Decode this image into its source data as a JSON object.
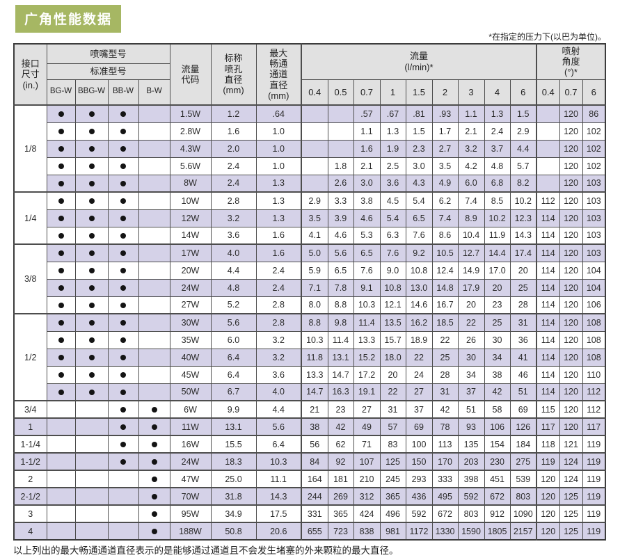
{
  "title": "广角性能数据",
  "note_top": "*在指定的压力下(以巴为单位)。",
  "footer": "以上列出的最大畅通通道直径表示的是能够通过通道且不会发生堵塞的外来颗粒的最大直径。",
  "colors": {
    "title_bg": "#a6b763",
    "row_stripe": "#d5d2e8",
    "header_bg": "#e1e1e1",
    "border": "#4d4d4d"
  },
  "table": {
    "header": {
      "size": "接口\n尺寸\n(in.)",
      "nozzle_model": "喷嘴型号",
      "standard_model": "标准型号",
      "models": [
        "BG-W",
        "BBG-W",
        "BB-W",
        "B-W"
      ],
      "flow_code": "流量\n代码",
      "orifice": "标称\n喷孔\n直径\n(mm)",
      "passage": "最大\n畅通\n通道\n直径\n(mm)",
      "flow": "流量\n(l/min)*",
      "flow_pressures": [
        "0.4",
        "0.5",
        "0.7",
        "1",
        "1.5",
        "2",
        "3",
        "4",
        "6"
      ],
      "angle": "喷射\n角度\n(°)*",
      "angle_pressures": [
        "0.4",
        "0.7",
        "6"
      ]
    },
    "groups": [
      {
        "size": "1/8",
        "rows": [
          {
            "models": [
              1,
              1,
              1,
              0
            ],
            "code": "1.5W",
            "orifice": "1.2",
            "passage": ".64",
            "flows": [
              "",
              "",
              ".57",
              ".67",
              ".81",
              ".93",
              "1.1",
              "1.3",
              "1.5"
            ],
            "angles": [
              "",
              "120",
              "86"
            ]
          },
          {
            "models": [
              1,
              1,
              1,
              0
            ],
            "code": "2.8W",
            "orifice": "1.6",
            "passage": "1.0",
            "flows": [
              "",
              "",
              "1.1",
              "1.3",
              "1.5",
              "1.7",
              "2.1",
              "2.4",
              "2.9"
            ],
            "angles": [
              "",
              "120",
              "102"
            ]
          },
          {
            "models": [
              1,
              1,
              1,
              0
            ],
            "code": "4.3W",
            "orifice": "2.0",
            "passage": "1.0",
            "flows": [
              "",
              "",
              "1.6",
              "1.9",
              "2.3",
              "2.7",
              "3.2",
              "3.7",
              "4.4"
            ],
            "angles": [
              "",
              "120",
              "102"
            ]
          },
          {
            "models": [
              1,
              1,
              1,
              0
            ],
            "code": "5.6W",
            "orifice": "2.4",
            "passage": "1.0",
            "flows": [
              "",
              "1.8",
              "2.1",
              "2.5",
              "3.0",
              "3.5",
              "4.2",
              "4.8",
              "5.7"
            ],
            "angles": [
              "",
              "120",
              "102"
            ]
          },
          {
            "models": [
              1,
              1,
              1,
              0
            ],
            "code": "8W",
            "orifice": "2.4",
            "passage": "1.3",
            "flows": [
              "",
              "2.6",
              "3.0",
              "3.6",
              "4.3",
              "4.9",
              "6.0",
              "6.8",
              "8.2"
            ],
            "angles": [
              "",
              "120",
              "103"
            ]
          }
        ]
      },
      {
        "size": "1/4",
        "rows": [
          {
            "models": [
              1,
              1,
              1,
              0
            ],
            "code": "10W",
            "orifice": "2.8",
            "passage": "1.3",
            "flows": [
              "2.9",
              "3.3",
              "3.8",
              "4.5",
              "5.4",
              "6.2",
              "7.4",
              "8.5",
              "10.2"
            ],
            "angles": [
              "112",
              "120",
              "103"
            ]
          },
          {
            "models": [
              1,
              1,
              1,
              0
            ],
            "code": "12W",
            "orifice": "3.2",
            "passage": "1.3",
            "flows": [
              "3.5",
              "3.9",
              "4.6",
              "5.4",
              "6.5",
              "7.4",
              "8.9",
              "10.2",
              "12.3"
            ],
            "angles": [
              "114",
              "120",
              "103"
            ]
          },
          {
            "models": [
              1,
              1,
              1,
              0
            ],
            "code": "14W",
            "orifice": "3.6",
            "passage": "1.6",
            "flows": [
              "4.1",
              "4.6",
              "5.3",
              "6.3",
              "7.6",
              "8.6",
              "10.4",
              "11.9",
              "14.3"
            ],
            "angles": [
              "114",
              "120",
              "103"
            ]
          }
        ]
      },
      {
        "size": "3/8",
        "rows": [
          {
            "models": [
              1,
              1,
              1,
              0
            ],
            "code": "17W",
            "orifice": "4.0",
            "passage": "1.6",
            "flows": [
              "5.0",
              "5.6",
              "6.5",
              "7.6",
              "9.2",
              "10.5",
              "12.7",
              "14.4",
              "17.4"
            ],
            "angles": [
              "114",
              "120",
              "103"
            ]
          },
          {
            "models": [
              1,
              1,
              1,
              0
            ],
            "code": "20W",
            "orifice": "4.4",
            "passage": "2.4",
            "flows": [
              "5.9",
              "6.5",
              "7.6",
              "9.0",
              "10.8",
              "12.4",
              "14.9",
              "17.0",
              "20"
            ],
            "angles": [
              "114",
              "120",
              "104"
            ]
          },
          {
            "models": [
              1,
              1,
              1,
              0
            ],
            "code": "24W",
            "orifice": "4.8",
            "passage": "2.4",
            "flows": [
              "7.1",
              "7.8",
              "9.1",
              "10.8",
              "13.0",
              "14.8",
              "17.9",
              "20",
              "25"
            ],
            "angles": [
              "114",
              "120",
              "104"
            ]
          },
          {
            "models": [
              1,
              1,
              1,
              0
            ],
            "code": "27W",
            "orifice": "5.2",
            "passage": "2.8",
            "flows": [
              "8.0",
              "8.8",
              "10.3",
              "12.1",
              "14.6",
              "16.7",
              "20",
              "23",
              "28"
            ],
            "angles": [
              "114",
              "120",
              "106"
            ]
          }
        ]
      },
      {
        "size": "1/2",
        "rows": [
          {
            "models": [
              1,
              1,
              1,
              0
            ],
            "code": "30W",
            "orifice": "5.6",
            "passage": "2.8",
            "flows": [
              "8.8",
              "9.8",
              "11.4",
              "13.5",
              "16.2",
              "18.5",
              "22",
              "25",
              "31"
            ],
            "angles": [
              "114",
              "120",
              "108"
            ]
          },
          {
            "models": [
              1,
              1,
              1,
              0
            ],
            "code": "35W",
            "orifice": "6.0",
            "passage": "3.2",
            "flows": [
              "10.3",
              "11.4",
              "13.3",
              "15.7",
              "18.9",
              "22",
              "26",
              "30",
              "36"
            ],
            "angles": [
              "114",
              "120",
              "108"
            ]
          },
          {
            "models": [
              1,
              1,
              1,
              0
            ],
            "code": "40W",
            "orifice": "6.4",
            "passage": "3.2",
            "flows": [
              "11.8",
              "13.1",
              "15.2",
              "18.0",
              "22",
              "25",
              "30",
              "34",
              "41"
            ],
            "angles": [
              "114",
              "120",
              "108"
            ]
          },
          {
            "models": [
              1,
              1,
              1,
              0
            ],
            "code": "45W",
            "orifice": "6.4",
            "passage": "3.6",
            "flows": [
              "13.3",
              "14.7",
              "17.2",
              "20",
              "24",
              "28",
              "34",
              "38",
              "46"
            ],
            "angles": [
              "114",
              "120",
              "110"
            ]
          },
          {
            "models": [
              1,
              1,
              1,
              0
            ],
            "code": "50W",
            "orifice": "6.7",
            "passage": "4.0",
            "flows": [
              "14.7",
              "16.3",
              "19.1",
              "22",
              "27",
              "31",
              "37",
              "42",
              "51"
            ],
            "angles": [
              "114",
              "120",
              "112"
            ]
          }
        ]
      },
      {
        "size": "3/4",
        "rows": [
          {
            "models": [
              0,
              0,
              1,
              1
            ],
            "code": "6W",
            "orifice": "9.9",
            "passage": "4.4",
            "flows": [
              "21",
              "23",
              "27",
              "31",
              "37",
              "42",
              "51",
              "58",
              "69"
            ],
            "angles": [
              "115",
              "120",
              "112"
            ]
          }
        ]
      },
      {
        "size": "1",
        "rows": [
          {
            "models": [
              0,
              0,
              1,
              1
            ],
            "code": "11W",
            "orifice": "13.1",
            "passage": "5.6",
            "flows": [
              "38",
              "42",
              "49",
              "57",
              "69",
              "78",
              "93",
              "106",
              "126"
            ],
            "angles": [
              "117",
              "120",
              "117"
            ]
          }
        ]
      },
      {
        "size": "1-1/4",
        "rows": [
          {
            "models": [
              0,
              0,
              1,
              1
            ],
            "code": "16W",
            "orifice": "15.5",
            "passage": "6.4",
            "flows": [
              "56",
              "62",
              "71",
              "83",
              "100",
              "113",
              "135",
              "154",
              "184"
            ],
            "angles": [
              "118",
              "121",
              "119"
            ]
          }
        ]
      },
      {
        "size": "1-1/2",
        "rows": [
          {
            "models": [
              0,
              0,
              1,
              1
            ],
            "code": "24W",
            "orifice": "18.3",
            "passage": "10.3",
            "flows": [
              "84",
              "92",
              "107",
              "125",
              "150",
              "170",
              "203",
              "230",
              "275"
            ],
            "angles": [
              "119",
              "124",
              "119"
            ]
          }
        ]
      },
      {
        "size": "2",
        "rows": [
          {
            "models": [
              0,
              0,
              0,
              1
            ],
            "code": "47W",
            "orifice": "25.0",
            "passage": "11.1",
            "flows": [
              "164",
              "181",
              "210",
              "245",
              "293",
              "333",
              "398",
              "451",
              "539"
            ],
            "angles": [
              "120",
              "124",
              "119"
            ]
          }
        ]
      },
      {
        "size": "2-1/2",
        "rows": [
          {
            "models": [
              0,
              0,
              0,
              1
            ],
            "code": "70W",
            "orifice": "31.8",
            "passage": "14.3",
            "flows": [
              "244",
              "269",
              "312",
              "365",
              "436",
              "495",
              "592",
              "672",
              "803"
            ],
            "angles": [
              "120",
              "125",
              "119"
            ]
          }
        ]
      },
      {
        "size": "3",
        "rows": [
          {
            "models": [
              0,
              0,
              0,
              1
            ],
            "code": "95W",
            "orifice": "34.9",
            "passage": "17.5",
            "flows": [
              "331",
              "365",
              "424",
              "496",
              "592",
              "672",
              "803",
              "912",
              "1090"
            ],
            "angles": [
              "120",
              "125",
              "119"
            ]
          }
        ]
      },
      {
        "size": "4",
        "rows": [
          {
            "models": [
              0,
              0,
              0,
              1
            ],
            "code": "188W",
            "orifice": "50.8",
            "passage": "20.6",
            "flows": [
              "655",
              "723",
              "838",
              "981",
              "1172",
              "1330",
              "1590",
              "1805",
              "2157"
            ],
            "angles": [
              "120",
              "125",
              "119"
            ]
          }
        ]
      }
    ]
  }
}
